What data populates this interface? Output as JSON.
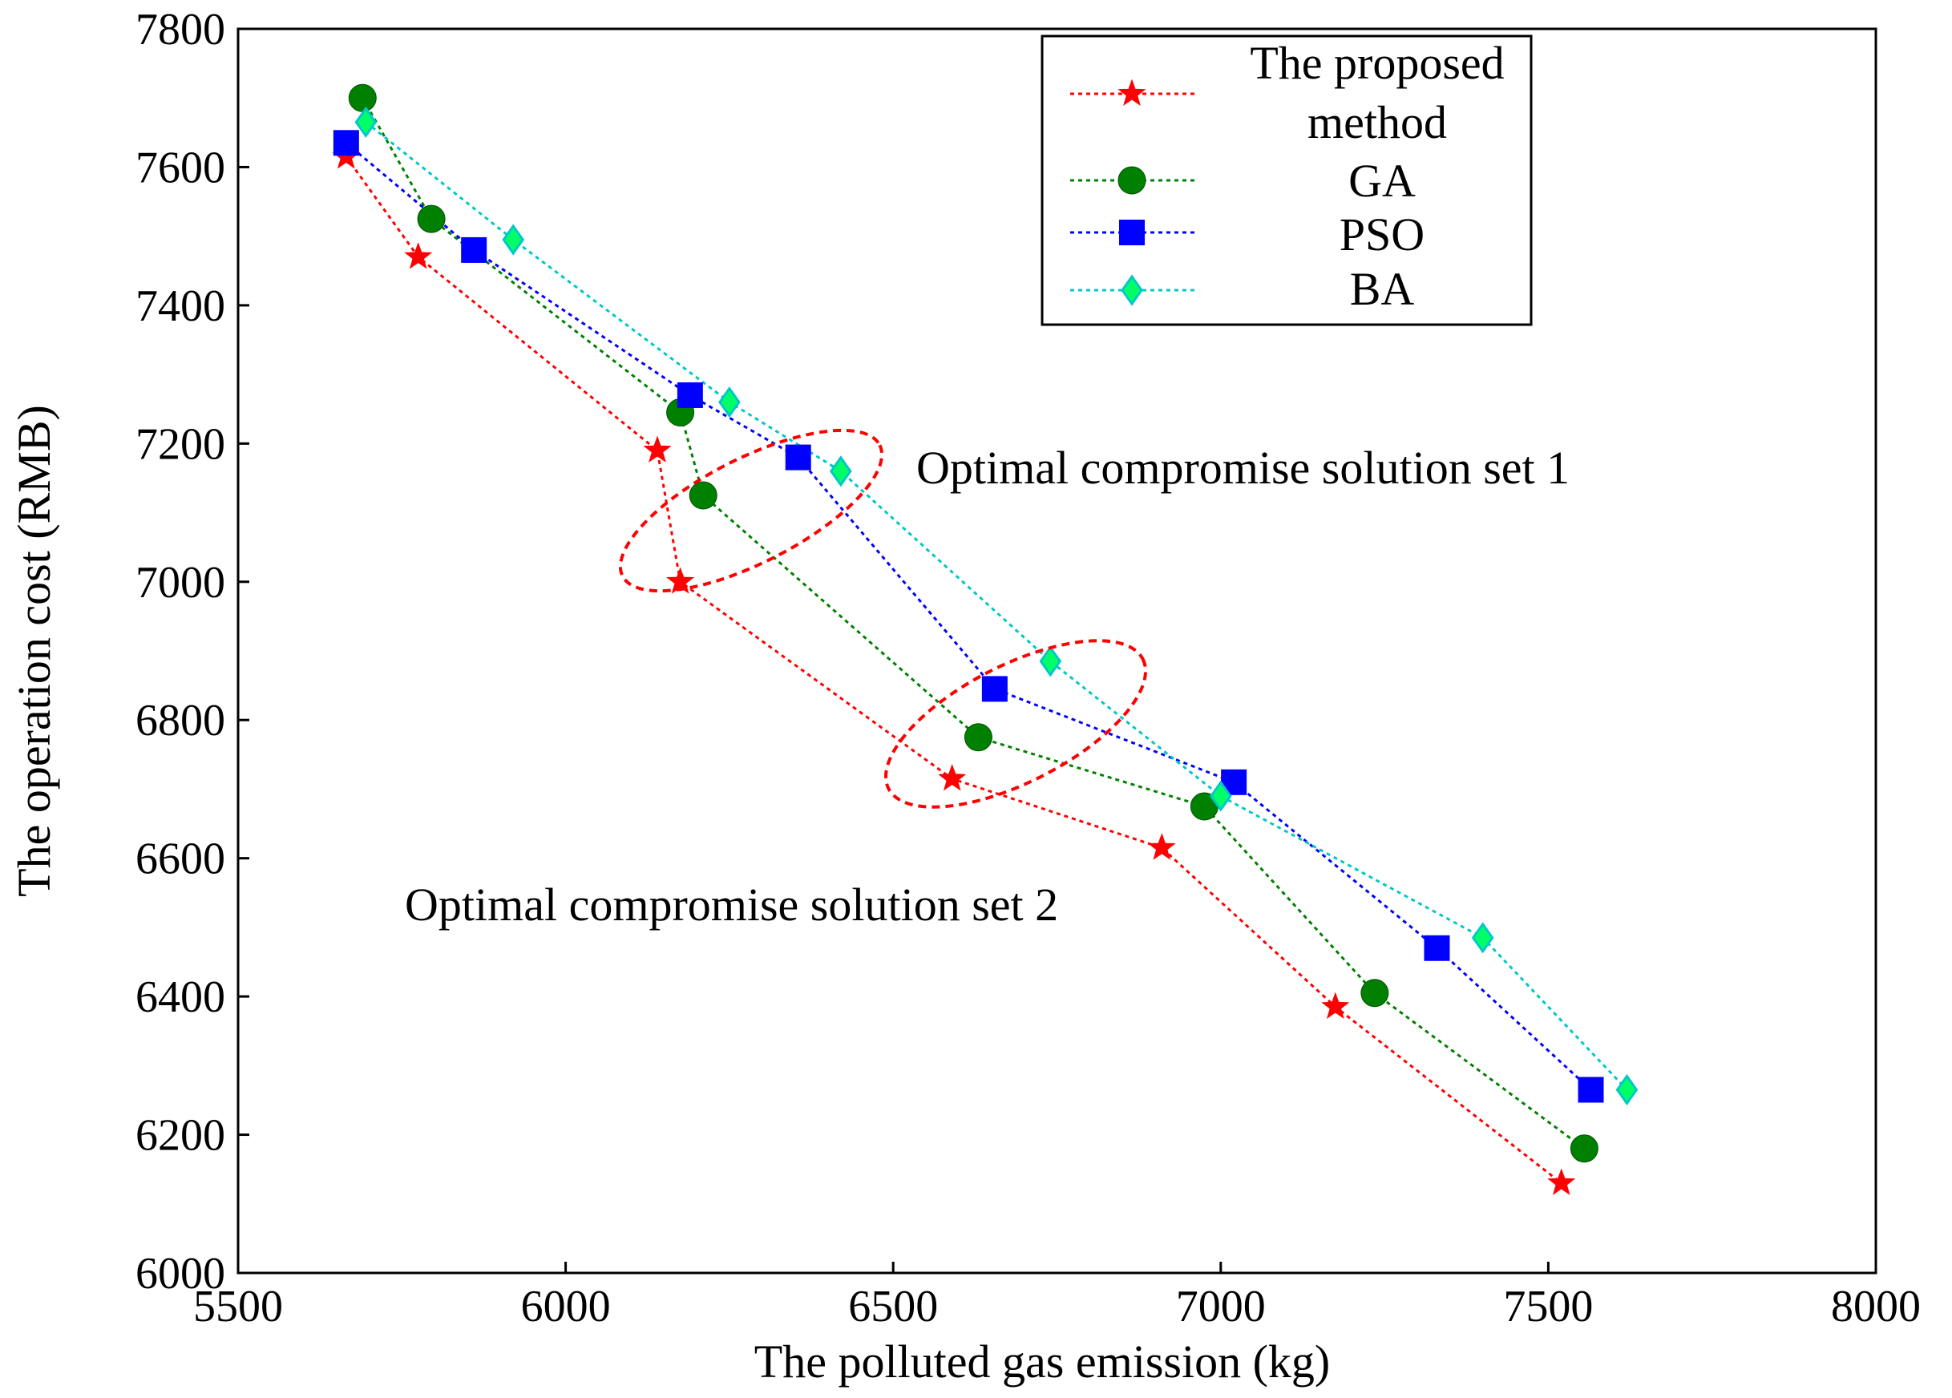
{
  "chart_data": {
    "type": "line",
    "title": "",
    "xlabel": "The polluted gas emission (kg)",
    "ylabel": "The operation cost (RMB)",
    "xlim": [
      5500,
      8000
    ],
    "ylim": [
      6000,
      7800
    ],
    "xticks": [
      5500,
      6000,
      6500,
      7000,
      7500,
      8000
    ],
    "yticks": [
      6000,
      6200,
      6400,
      6600,
      6800,
      7000,
      7200,
      7400,
      7600,
      7800
    ],
    "legend_position": "top-right",
    "legend_entries": [
      {
        "label_lines": [
          "The proposed",
          "method"
        ],
        "series": 0
      },
      {
        "label_lines": [
          "GA"
        ],
        "series": 1
      },
      {
        "label_lines": [
          "PSO"
        ],
        "series": 2
      },
      {
        "label_lines": [
          "BA"
        ],
        "series": 3
      }
    ],
    "series": [
      {
        "name": "The proposed method",
        "color": "#ff0000",
        "marker": "star",
        "x": [
          5665,
          5775,
          6140,
          6175,
          6590,
          6910,
          7175,
          7520
        ],
        "y": [
          7615,
          7470,
          7190,
          7000,
          6715,
          6615,
          6385,
          6130
        ]
      },
      {
        "name": "GA",
        "color": "#008000",
        "marker": "circle",
        "x": [
          5690,
          5795,
          6175,
          6210,
          6630,
          6975,
          7235,
          7555
        ],
        "y": [
          7700,
          7525,
          7245,
          7125,
          6775,
          6675,
          6405,
          6180
        ]
      },
      {
        "name": "PSO",
        "color": "#0000ff",
        "marker": "square",
        "x": [
          5665,
          5860,
          6190,
          6355,
          6655,
          7020,
          7330,
          7565
        ],
        "y": [
          7635,
          7480,
          7270,
          7180,
          6845,
          6710,
          6470,
          6265
        ]
      },
      {
        "name": "BA",
        "color": "#00c8c8",
        "marker_fill": "#00ff66",
        "marker": "diamond",
        "x": [
          5695,
          5920,
          6250,
          6420,
          6740,
          7000,
          7400,
          7620
        ],
        "y": [
          7665,
          7495,
          7260,
          7160,
          6885,
          6690,
          6485,
          6265
        ]
      }
    ],
    "annotations": [
      {
        "text": "Optimal compromise solution set 1"
      },
      {
        "text": "Optimal compromise solution set 2"
      }
    ]
  }
}
